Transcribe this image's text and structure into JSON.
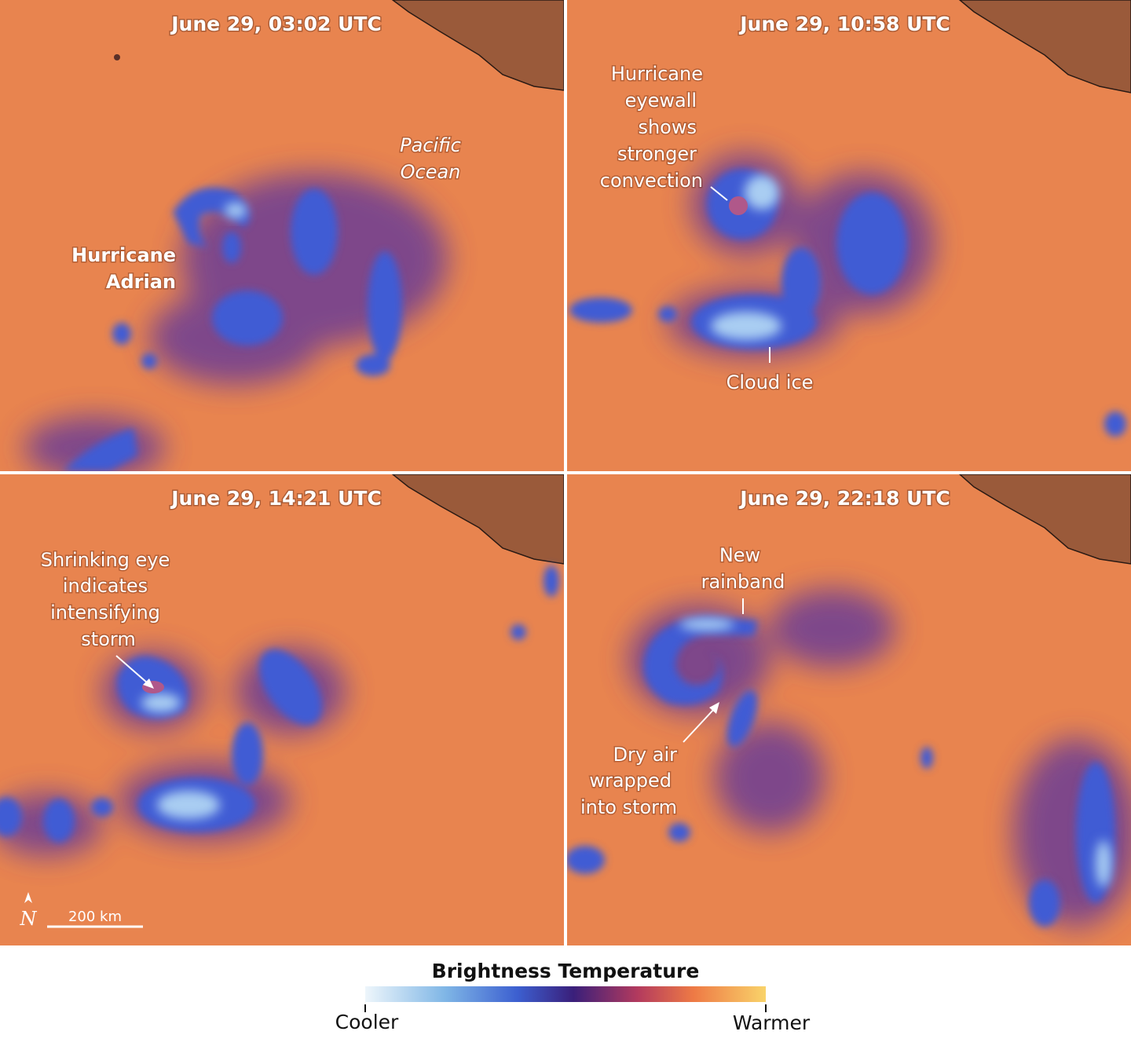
{
  "panels": [
    {
      "timestamp": "June 29, 03:02 UTC",
      "annotations": [
        {
          "lines": [
            "Pacific",
            "Ocean"
          ]
        },
        {
          "lines": [
            "Hurricane",
            "Adrian"
          ]
        }
      ]
    },
    {
      "timestamp": "June 29, 10:58 UTC",
      "annotations": [
        {
          "lines": [
            "Hurricane",
            "eyewall",
            "shows",
            "stronger",
            "convection"
          ]
        },
        {
          "lines": [
            "Cloud ice"
          ]
        }
      ]
    },
    {
      "timestamp": "June 29, 14:21 UTC",
      "annotations": [
        {
          "lines": [
            "Shrinking eye",
            "indicates",
            "intensifying",
            "storm"
          ]
        }
      ],
      "scale_bar": "200 km",
      "north_label": "N"
    },
    {
      "timestamp": "June 29, 22:18 UTC",
      "annotations": [
        {
          "lines": [
            "New",
            "rainband"
          ]
        },
        {
          "lines": [
            "Dry air",
            "wrapped",
            "into storm"
          ]
        }
      ]
    }
  ],
  "legend": {
    "title": "Brightness Temperature",
    "low_label": "Cooler",
    "high_label": "Warmer"
  }
}
